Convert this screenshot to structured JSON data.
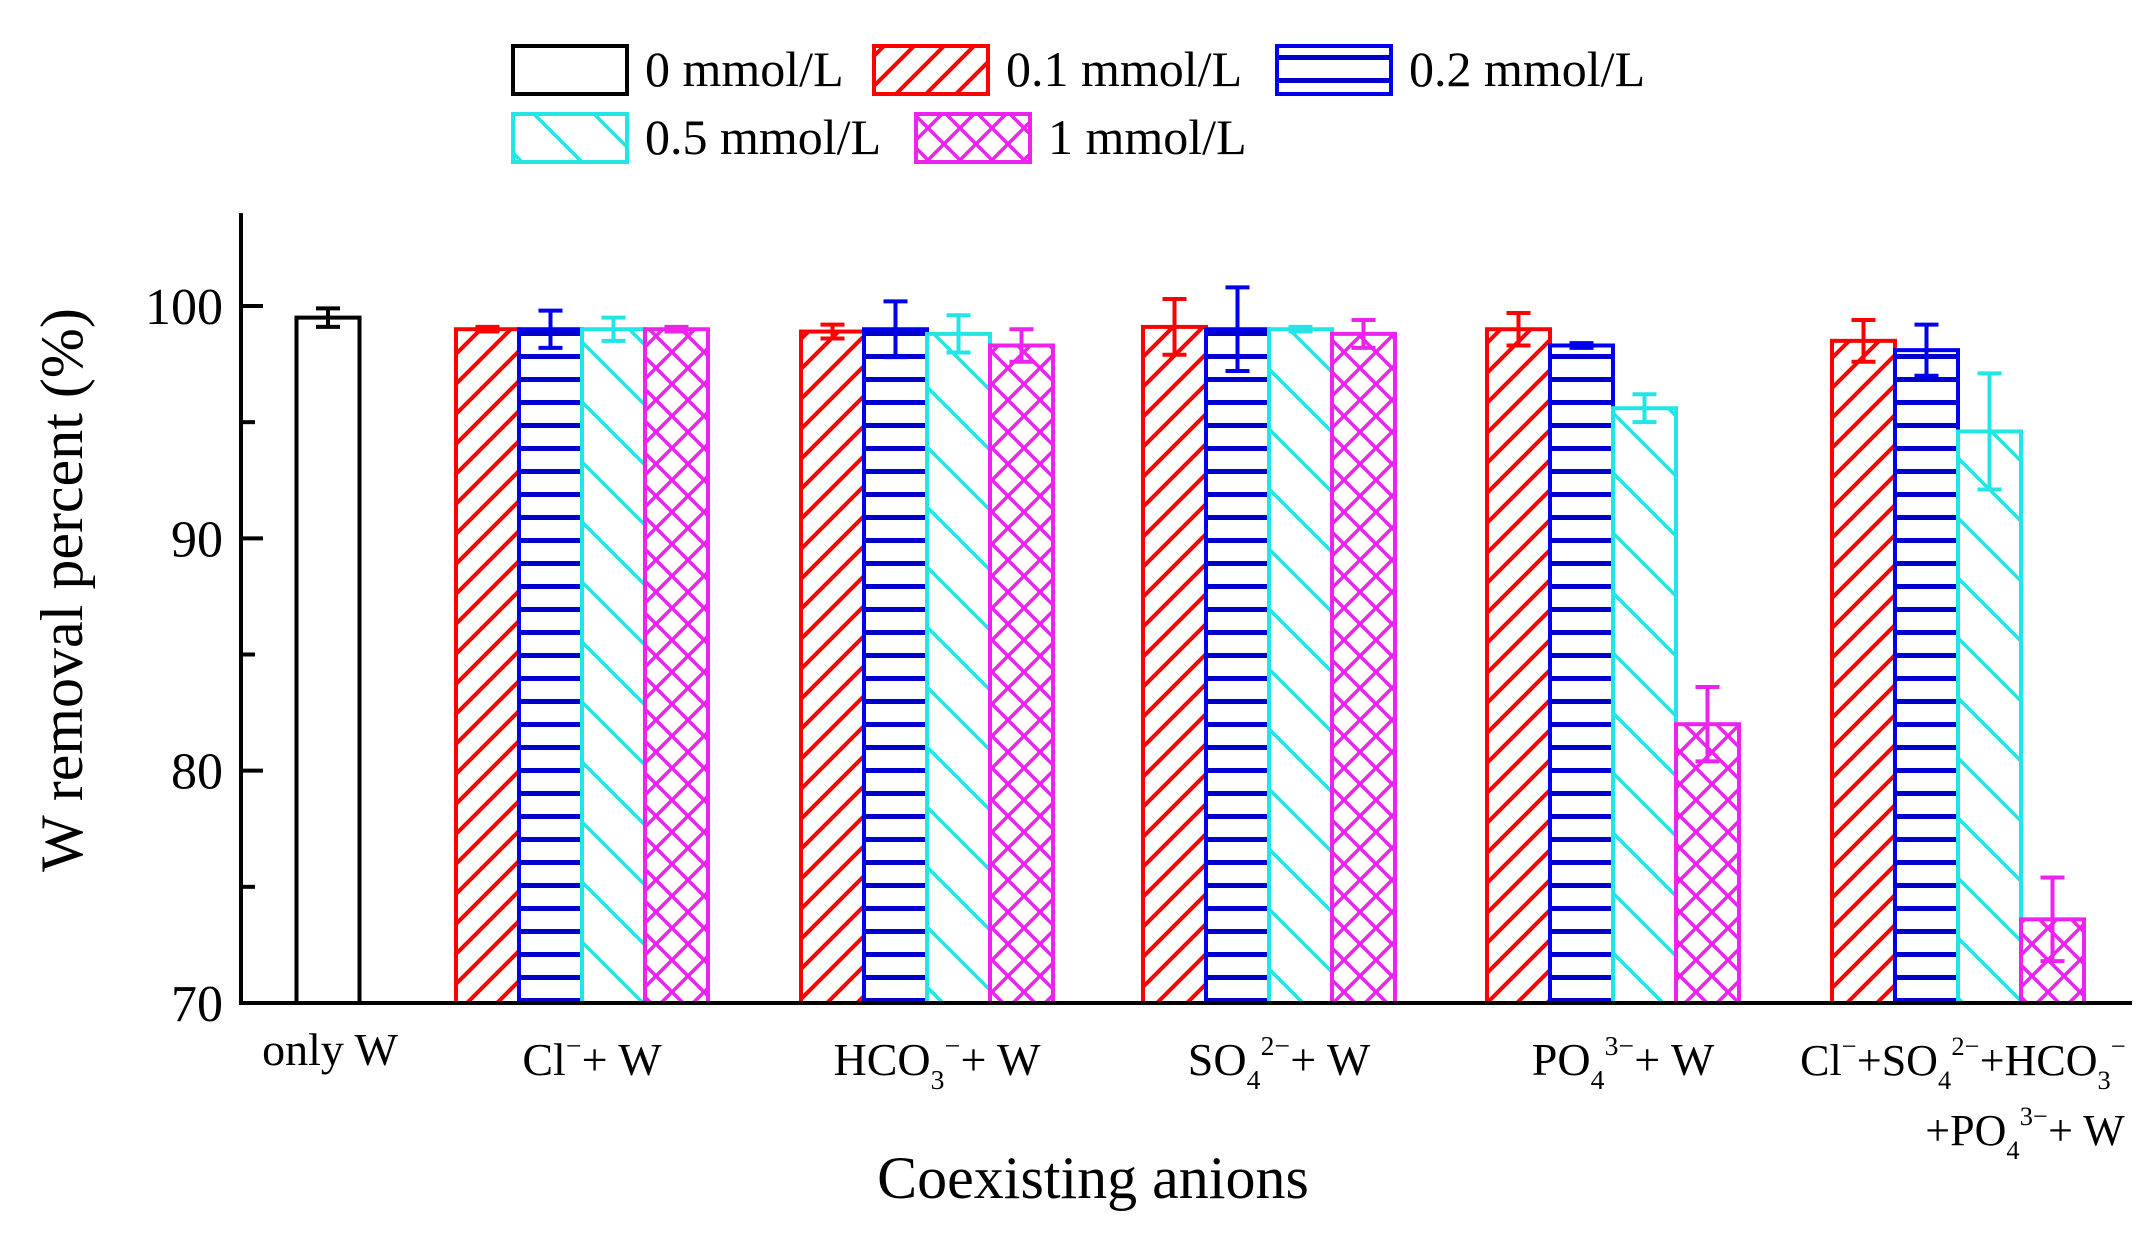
{
  "chart_data": {
    "type": "bar",
    "title": "",
    "xlabel": "Coexisting anions",
    "ylabel": "W removal percent (%)",
    "ylim": [
      70,
      104
    ],
    "yticks": [
      70,
      80,
      90,
      100
    ],
    "grid": false,
    "legend_placement": "top",
    "categories": [
      {
        "label": [
          {
            "t": "only W"
          }
        ]
      },
      {
        "label": [
          {
            "t": "Cl"
          },
          {
            "sup": "−"
          },
          {
            "t": " + W"
          }
        ]
      },
      {
        "label": [
          {
            "t": "HCO"
          },
          {
            "sub": "3"
          },
          {
            "sup": "−"
          },
          {
            "t": " + W"
          }
        ]
      },
      {
        "label": [
          {
            "t": "SO"
          },
          {
            "sub": "4"
          },
          {
            "sup": "2−"
          },
          {
            "t": " + W"
          }
        ]
      },
      {
        "label": [
          {
            "t": "PO"
          },
          {
            "sub": "4"
          },
          {
            "sup": "3−"
          },
          {
            "t": " + W"
          }
        ]
      },
      {
        "label": [
          {
            "t": "Cl"
          },
          {
            "sup": "−"
          },
          {
            "t": "+SO"
          },
          {
            "sub": "4"
          },
          {
            "sup": "2−"
          },
          {
            "t": "+HCO"
          },
          {
            "sub": "3"
          },
          {
            "sup": "−"
          }
        ],
        "label2": [
          {
            "t": "+PO"
          },
          {
            "sub": "4"
          },
          {
            "sup": "3−"
          },
          {
            "t": " + W"
          }
        ]
      }
    ],
    "series": [
      {
        "name": "0 mmol/L",
        "color": "#000000",
        "pattern": "none",
        "values": [
          99.5,
          null,
          null,
          null,
          null,
          null
        ],
        "errors": [
          0.4,
          null,
          null,
          null,
          null,
          null
        ]
      },
      {
        "name": "0.1 mmol/L",
        "color": "#ff0000",
        "pattern": "diag-up",
        "values": [
          null,
          99.0,
          98.9,
          99.1,
          99.0,
          98.5
        ],
        "errors": [
          null,
          0.1,
          0.3,
          1.2,
          0.7,
          0.9
        ]
      },
      {
        "name": "0.2 mmol/L",
        "color": "#0000ee",
        "pattern": "horizontal",
        "values": [
          null,
          99.0,
          99.0,
          99.0,
          98.3,
          98.1
        ],
        "errors": [
          null,
          0.8,
          1.2,
          1.8,
          0.1,
          1.1
        ]
      },
      {
        "name": "0.5 mmol/L",
        "color": "#22e5e5",
        "pattern": "diag-down",
        "values": [
          null,
          99.0,
          98.8,
          99.0,
          95.6,
          94.6
        ],
        "errors": [
          null,
          0.5,
          0.8,
          0.1,
          0.6,
          2.5
        ]
      },
      {
        "name": "1 mmol/L",
        "color": "#ee22ee",
        "pattern": "cross",
        "values": [
          null,
          99.0,
          98.3,
          98.8,
          82.0,
          73.6
        ],
        "errors": [
          null,
          0.1,
          0.7,
          0.6,
          1.6,
          1.8
        ]
      }
    ]
  }
}
